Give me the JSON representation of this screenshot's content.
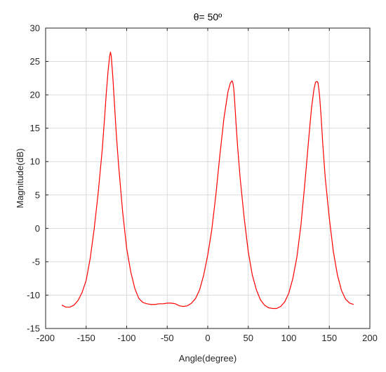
{
  "chart_data": {
    "type": "line",
    "title": "θ= 50º",
    "xlabel": "Angle(degree)",
    "ylabel": "Magnitude(dB)",
    "xlim": [
      -200,
      200
    ],
    "ylim": [
      -15,
      30
    ],
    "xticks": [
      -200,
      -150,
      -100,
      -50,
      0,
      50,
      100,
      150,
      200
    ],
    "yticks": [
      -15,
      -10,
      -5,
      0,
      5,
      10,
      15,
      20,
      25,
      30
    ],
    "xtick_labels": [
      "-200",
      "-150",
      "-100",
      "-50",
      "0",
      "50",
      "100",
      "150",
      "200"
    ],
    "ytick_labels": [
      "-15",
      "-10",
      "-5",
      "0",
      "5",
      "10",
      "15",
      "20",
      "25",
      "30"
    ],
    "grid": true,
    "colors": {
      "line": "#ff0000",
      "grid": "#dcdcdc",
      "axes": "#262626"
    },
    "series": [
      {
        "x": [
          -180,
          -175,
          -170,
          -165,
          -160,
          -155,
          -150,
          -145,
          -140,
          -135,
          -130,
          -127,
          -125,
          -123,
          -121,
          -120,
          -119,
          -117,
          -115,
          -113,
          -110,
          -105,
          -100,
          -95,
          -90,
          -85,
          -80,
          -75,
          -70,
          -65,
          -60,
          -55,
          -50,
          -45,
          -40,
          -35,
          -30,
          -25,
          -20,
          -15,
          -10,
          -5,
          0,
          5,
          10,
          15,
          20,
          25,
          28,
          30,
          31,
          32,
          33,
          35,
          37,
          40,
          45,
          50,
          55,
          60,
          65,
          70,
          75,
          80,
          85,
          90,
          95,
          100,
          105,
          110,
          115,
          120,
          125,
          128,
          131,
          133,
          135,
          136,
          137,
          138,
          140,
          142,
          145,
          150,
          155,
          160,
          165,
          170,
          175,
          180
        ],
        "y": [
          -11.5,
          -11.8,
          -11.8,
          -11.5,
          -10.8,
          -9.6,
          -7.8,
          -4.5,
          0.0,
          5.5,
          12.0,
          17.0,
          20.5,
          23.5,
          25.8,
          26.4,
          25.8,
          22.5,
          18.5,
          14.5,
          9.5,
          2.5,
          -3.0,
          -6.5,
          -9.0,
          -10.5,
          -11.1,
          -11.3,
          -11.4,
          -11.4,
          -11.3,
          -11.3,
          -11.2,
          -11.2,
          -11.3,
          -11.6,
          -11.7,
          -11.6,
          -11.2,
          -10.5,
          -9.2,
          -7.0,
          -4.0,
          -0.2,
          5.0,
          11.0,
          16.5,
          20.5,
          21.8,
          22.1,
          21.8,
          21.0,
          19.5,
          15.5,
          12.0,
          7.5,
          1.5,
          -3.5,
          -7.0,
          -9.2,
          -10.7,
          -11.5,
          -11.9,
          -12.0,
          -12.0,
          -11.7,
          -11.0,
          -9.7,
          -7.5,
          -4.3,
          0.5,
          7.0,
          14.0,
          18.0,
          20.8,
          21.9,
          22.0,
          21.8,
          20.9,
          19.8,
          16.5,
          12.5,
          7.5,
          1.5,
          -3.5,
          -7.0,
          -9.3,
          -10.6,
          -11.2,
          -11.4
        ]
      }
    ]
  }
}
